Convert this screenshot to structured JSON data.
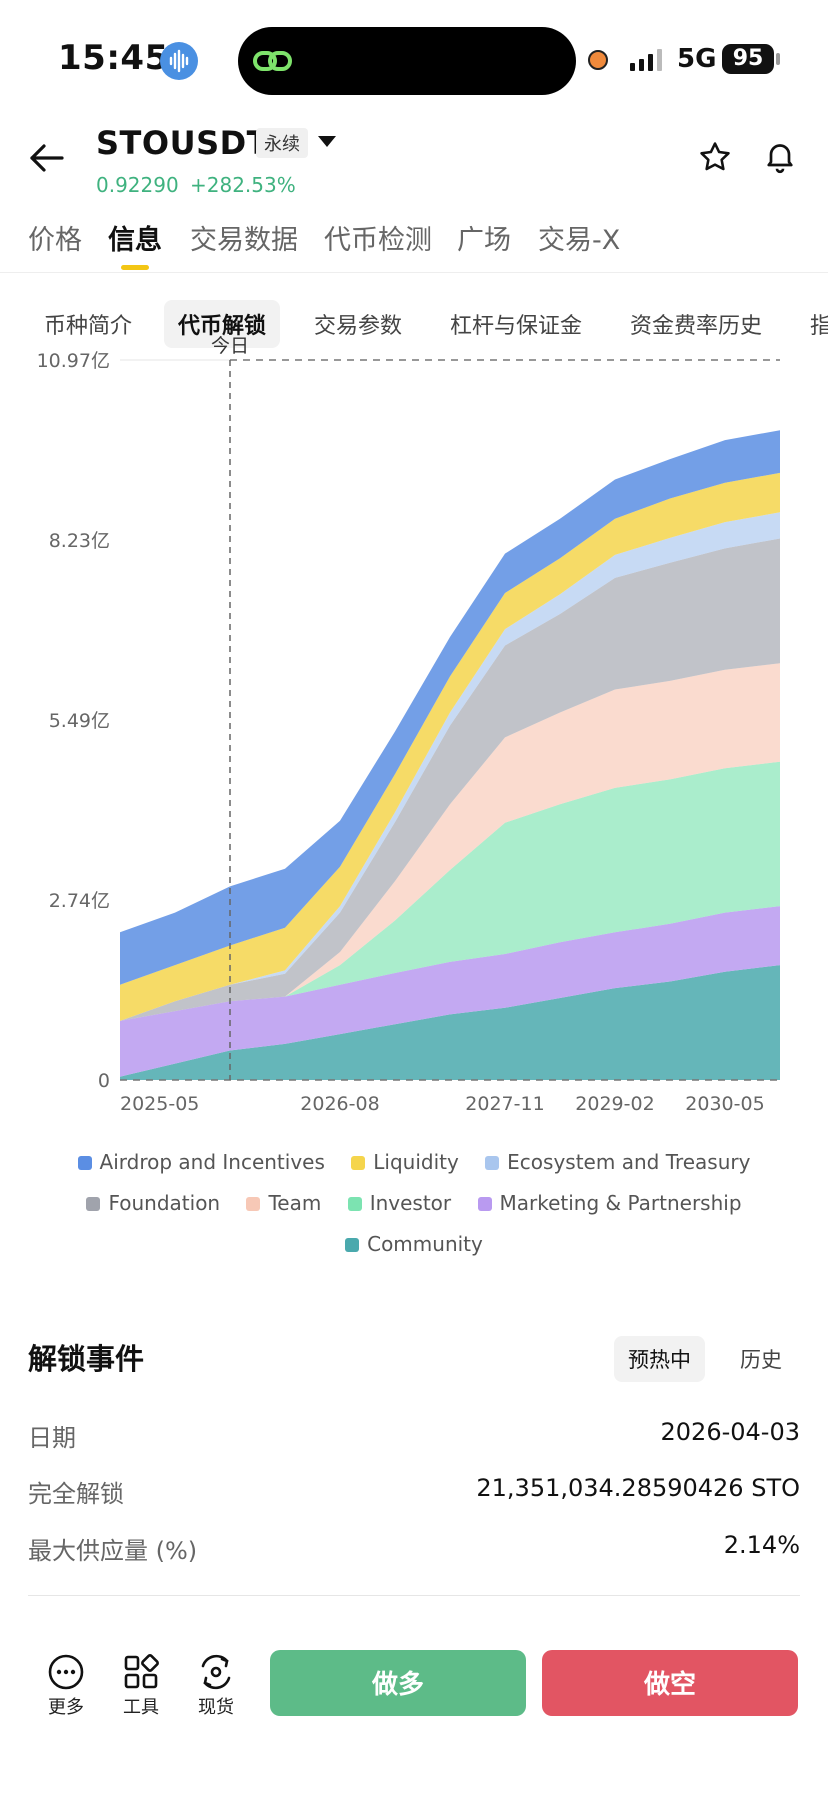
{
  "status_bar": {
    "time": "15:45",
    "network": "5G",
    "battery": "95"
  },
  "header": {
    "symbol": "STOUSDT",
    "contract_type": "永续",
    "price": "0.92290",
    "change": "+282.53%"
  },
  "main_tabs": [
    {
      "label": "价格"
    },
    {
      "label": "信息"
    },
    {
      "label": "交易数据"
    },
    {
      "label": "代币检测"
    },
    {
      "label": "广场"
    },
    {
      "label": "交易-X"
    }
  ],
  "sub_tabs": [
    {
      "label": "币种简介"
    },
    {
      "label": "代币解锁"
    },
    {
      "label": "交易参数"
    },
    {
      "label": "杠杆与保证金"
    },
    {
      "label": "资金费率历史"
    },
    {
      "label": "指"
    }
  ],
  "chart_data": {
    "type": "area",
    "stacked": true,
    "today_label": "今日",
    "y_ticks": [
      "0",
      "2.74亿",
      "5.49亿",
      "8.23亿",
      "10.97亿"
    ],
    "y_range": [
      0,
      10.97
    ],
    "y_unit": "亿",
    "x_ticks": [
      "2025-05",
      "2026-08",
      "2027-11",
      "2029-02",
      "2030-05"
    ],
    "x": [
      "2025-05",
      "2025-10",
      "2026-01",
      "2026-04",
      "2026-08",
      "2027-01",
      "2027-06",
      "2027-11",
      "2028-06",
      "2029-02",
      "2029-09",
      "2030-05",
      "2030-08"
    ],
    "today_index": 2,
    "series": [
      {
        "name": "Community",
        "color": "#4aa9ad",
        "values": [
          0.05,
          0.25,
          0.45,
          0.55,
          0.7,
          0.85,
          1.0,
          1.1,
          1.25,
          1.4,
          1.5,
          1.65,
          1.75
        ]
      },
      {
        "name": "Marketing & Partnership",
        "color": "#b99af0",
        "values": [
          0.85,
          0.8,
          0.75,
          0.72,
          0.75,
          0.78,
          0.8,
          0.82,
          0.85,
          0.85,
          0.88,
          0.9,
          0.9
        ]
      },
      {
        "name": "Investor",
        "color": "#7ce3b1",
        "values": [
          0.0,
          0.0,
          0.0,
          0.0,
          0.3,
          0.8,
          1.4,
          2.0,
          2.1,
          2.2,
          2.2,
          2.2,
          2.2
        ]
      },
      {
        "name": "Team",
        "color": "#f7c8b6",
        "values": [
          0.0,
          0.0,
          0.0,
          0.0,
          0.2,
          0.6,
          1.0,
          1.3,
          1.4,
          1.5,
          1.5,
          1.5,
          1.5
        ]
      },
      {
        "name": "Foundation",
        "color": "#a0a3ac",
        "values": [
          0.0,
          0.15,
          0.25,
          0.35,
          0.6,
          0.9,
          1.2,
          1.4,
          1.5,
          1.7,
          1.8,
          1.85,
          1.9
        ]
      },
      {
        "name": "Ecosystem and Treasury",
        "color": "#a9c6ee",
        "values": [
          0.0,
          0.0,
          0.0,
          0.05,
          0.1,
          0.15,
          0.2,
          0.25,
          0.3,
          0.35,
          0.38,
          0.4,
          0.4
        ]
      },
      {
        "name": "Liquidity",
        "color": "#f5d54c",
        "values": [
          0.55,
          0.55,
          0.6,
          0.65,
          0.6,
          0.58,
          0.55,
          0.55,
          0.55,
          0.55,
          0.6,
          0.6,
          0.6
        ]
      },
      {
        "name": "Airdrop and Incentives",
        "color": "#5b8ee3",
        "values": [
          0.8,
          0.8,
          0.9,
          0.9,
          0.7,
          0.65,
          0.6,
          0.6,
          0.6,
          0.6,
          0.6,
          0.65,
          0.65
        ]
      }
    ]
  },
  "legend": [
    {
      "label": "Airdrop and Incentives",
      "color": "#5b8ee3"
    },
    {
      "label": "Liquidity",
      "color": "#f5d54c"
    },
    {
      "label": "Ecosystem and Treasury",
      "color": "#a9c6ee"
    },
    {
      "label": "Foundation",
      "color": "#a0a3ac"
    },
    {
      "label": "Team",
      "color": "#f7c8b6"
    },
    {
      "label": "Investor",
      "color": "#7ce3b1"
    },
    {
      "label": "Marketing & Partnership",
      "color": "#b99af0"
    },
    {
      "label": "Community",
      "color": "#4aa9ad"
    }
  ],
  "unlock_events": {
    "title": "解锁事件",
    "tab_upcoming": "预热中",
    "tab_history": "历史",
    "rows": [
      {
        "label": "日期",
        "value": "2026-04-03"
      },
      {
        "label": "完全解锁",
        "value": "21,351,034.28590426 STO"
      },
      {
        "label": "最大供应量 (%)",
        "value": "2.14%"
      }
    ]
  },
  "bottom_bar": {
    "more": "更多",
    "tools": "工具",
    "spot": "现货",
    "long": "做多",
    "short": "做空"
  }
}
